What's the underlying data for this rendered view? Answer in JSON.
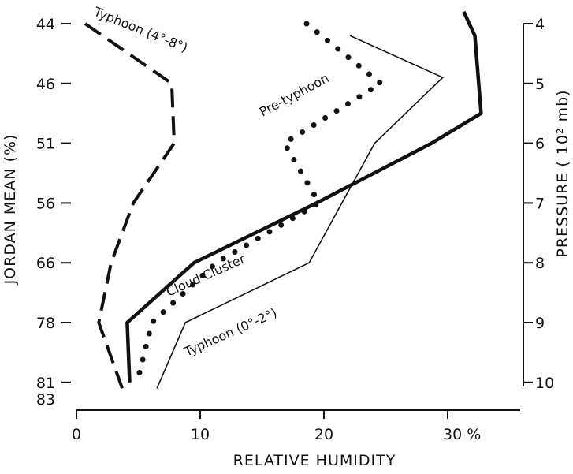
{
  "chart_data": {
    "type": "line",
    "xlabel": "RELATIVE HUMIDITY",
    "ylabel_left": "JORDAN MEAN (%)",
    "ylabel_right": "PRESSURE ( 10² mb)",
    "x_ticks": [
      {
        "value": 0,
        "label": "0"
      },
      {
        "value": 10,
        "label": "10"
      },
      {
        "value": 20,
        "label": "20"
      },
      {
        "value": 30,
        "label": "30 %"
      }
    ],
    "xlim": [
      0,
      37
    ],
    "left_ticks": [
      {
        "pressure": 4,
        "label": "44"
      },
      {
        "pressure": 5,
        "label": "46"
      },
      {
        "pressure": 6,
        "label": "51"
      },
      {
        "pressure": 7,
        "label": "56"
      },
      {
        "pressure": 8,
        "label": "66"
      },
      {
        "pressure": 9,
        "label": "78"
      },
      {
        "pressure": 10,
        "label": "81"
      }
    ],
    "left_extra_label": "83",
    "right_ticks": [
      {
        "value": 4,
        "label": "4"
      },
      {
        "value": 5,
        "label": "5"
      },
      {
        "value": 6,
        "label": "6"
      },
      {
        "value": 7,
        "label": "7"
      },
      {
        "value": 8,
        "label": "8"
      },
      {
        "value": 9,
        "label": "9"
      },
      {
        "value": 10,
        "label": "10"
      }
    ],
    "ylim": [
      3.8,
      10.3
    ],
    "y_inverted": true,
    "grid": false,
    "legend": "none",
    "series": [
      {
        "name": "Typhoon (4°-8°)",
        "style": "dashed",
        "points": [
          [
            0.7,
            4
          ],
          [
            7.7,
            5
          ],
          [
            7.9,
            6
          ],
          [
            4.6,
            7
          ],
          [
            2.8,
            8
          ],
          [
            1.8,
            9
          ],
          [
            3.7,
            10.1
          ]
        ]
      },
      {
        "name": "Pre-typhoon",
        "style": "dotted",
        "points": [
          [
            18.6,
            4
          ],
          [
            24.6,
            5
          ],
          [
            16.8,
            6
          ],
          [
            19.6,
            7
          ],
          [
            11.3,
            8
          ],
          [
            6.1,
            9
          ],
          [
            4.9,
            10
          ]
        ]
      },
      {
        "name": "Cloud Cluster",
        "style": "thick",
        "points": [
          [
            31.3,
            3.8
          ],
          [
            32.2,
            4.2
          ],
          [
            32.7,
            5.5
          ],
          [
            28.7,
            6
          ],
          [
            19.4,
            7
          ],
          [
            9.5,
            8
          ],
          [
            4.1,
            9
          ],
          [
            4.3,
            10
          ]
        ]
      },
      {
        "name": "Typhoon (0°-2°)",
        "style": "thin",
        "points": [
          [
            22.1,
            4.2
          ],
          [
            29.6,
            4.9
          ],
          [
            24.1,
            6
          ],
          [
            18.8,
            8
          ],
          [
            8.8,
            9
          ],
          [
            6.5,
            10.1
          ]
        ]
      }
    ]
  }
}
